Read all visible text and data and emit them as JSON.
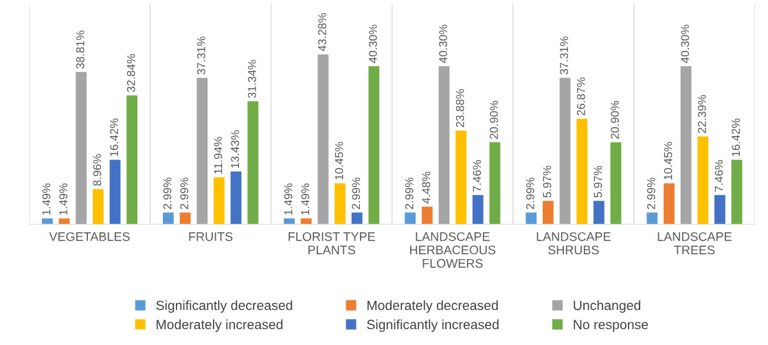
{
  "chart_data": {
    "type": "bar",
    "categories": [
      "VEGETABLES",
      "FRUITS",
      "FLORIST TYPE\nPLANTS",
      "LANDSCAPE\nHERBACEOUS\nFLOWERS",
      "LANDSCAPE\nSHRUBS",
      "LANDSCAPE\nTREES"
    ],
    "series": [
      {
        "name": "Significantly decreased",
        "color": "#5b9bd5",
        "values": [
          1.49,
          2.99,
          1.49,
          2.99,
          2.99,
          2.99
        ],
        "value_labels": [
          "1.49%",
          "2.99%",
          "1.49%",
          "2.99%",
          "2.99%",
          "2.99%"
        ]
      },
      {
        "name": "Moderately decreased",
        "color": "#ed7d31",
        "values": [
          1.49,
          2.99,
          1.49,
          4.48,
          5.97,
          10.45
        ],
        "value_labels": [
          "1.49%",
          "2.99%",
          "1.49%",
          "4.48%",
          "5.97%",
          "10.45%"
        ]
      },
      {
        "name": "Unchanged",
        "color": "#a5a5a5",
        "values": [
          38.81,
          37.31,
          43.28,
          40.3,
          37.31,
          40.3
        ],
        "value_labels": [
          "38.81%",
          "37.31%",
          "43.28%",
          "40.30%",
          "37.31%",
          "40.30%"
        ]
      },
      {
        "name": "Moderately increased",
        "color": "#ffc000",
        "values": [
          8.96,
          11.94,
          10.45,
          23.88,
          26.87,
          22.39
        ],
        "value_labels": [
          "8.96%",
          "11.94%",
          "10.45%",
          "23.88%",
          "26.87%",
          "22.39%"
        ]
      },
      {
        "name": "Significantly increased",
        "color": "#4472c4",
        "values": [
          16.42,
          13.43,
          2.99,
          7.46,
          5.97,
          7.46
        ],
        "value_labels": [
          "16.42%",
          "13.43%",
          "2.99%",
          "7.46%",
          "5.97%",
          "7.46%"
        ]
      },
      {
        "name": "No response",
        "color": "#70ad47",
        "values": [
          32.84,
          31.34,
          40.3,
          20.9,
          20.9,
          16.42
        ],
        "value_labels": [
          "32.84%",
          "31.34%",
          "40.30%",
          "20.90%",
          "20.90%",
          "16.42%"
        ]
      }
    ],
    "grid": "x",
    "legend": "bottom",
    "tick_labels": "x"
  }
}
